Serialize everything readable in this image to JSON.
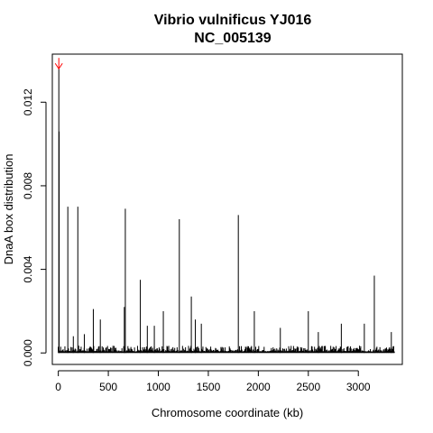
{
  "chart_data": {
    "type": "bar",
    "title": "Vibrio vulnificus YJ016",
    "subtitle": "NC_005139",
    "xlabel": "Chromosome coordinate (kb)",
    "ylabel": "DnaA box distribution",
    "xlim": [
      -60,
      3440
    ],
    "ylim": [
      -0.00055,
      0.0143
    ],
    "xticks": [
      0,
      500,
      1000,
      1500,
      2000,
      2500,
      3000
    ],
    "yticks": [
      0.0,
      0.004,
      0.008,
      0.012
    ],
    "ytick_labels": [
      "0.000",
      "0.004",
      "0.008",
      "0.012"
    ],
    "grid": false,
    "legend": "none",
    "line_color": "#000000",
    "marker_color": "#ff0000",
    "marker": {
      "x": 5,
      "y": 0.0136
    },
    "peaks": [
      {
        "x": 5,
        "y": 0.0136
      },
      {
        "x": 8,
        "y": 0.0106
      },
      {
        "x": 95,
        "y": 0.007
      },
      {
        "x": 195,
        "y": 0.007
      },
      {
        "x": 670,
        "y": 0.0069
      },
      {
        "x": 1800,
        "y": 0.0066
      },
      {
        "x": 1210,
        "y": 0.0064
      },
      {
        "x": 3160,
        "y": 0.0037
      },
      {
        "x": 820,
        "y": 0.0035
      },
      {
        "x": 1330,
        "y": 0.0027
      },
      {
        "x": 660,
        "y": 0.0022
      },
      {
        "x": 350,
        "y": 0.0021
      },
      {
        "x": 1050,
        "y": 0.002
      },
      {
        "x": 1960,
        "y": 0.002
      },
      {
        "x": 2500,
        "y": 0.002
      },
      {
        "x": 420,
        "y": 0.0016
      },
      {
        "x": 1370,
        "y": 0.0016
      },
      {
        "x": 1430,
        "y": 0.0014
      },
      {
        "x": 2830,
        "y": 0.0014
      },
      {
        "x": 3060,
        "y": 0.0014
      },
      {
        "x": 890,
        "y": 0.0013
      },
      {
        "x": 960,
        "y": 0.0013
      },
      {
        "x": 2220,
        "y": 0.0012
      },
      {
        "x": 2600,
        "y": 0.001
      },
      {
        "x": 3330,
        "y": 0.001
      },
      {
        "x": 260,
        "y": 0.0009
      },
      {
        "x": 150,
        "y": 0.0008
      }
    ],
    "baseline": {
      "x_start": 0,
      "x_end": 3360,
      "step": 6,
      "typical_max": 0.00035
    }
  }
}
